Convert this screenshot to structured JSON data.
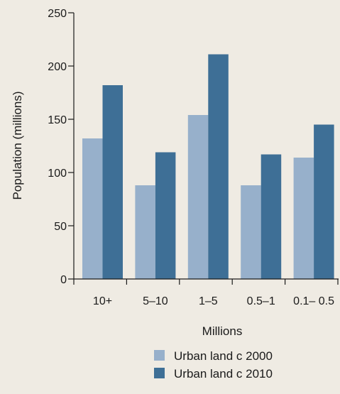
{
  "chart_data": {
    "type": "bar",
    "categories": [
      "10+",
      "5–10",
      "1–5",
      "0.5–1",
      "0.1– 0.5"
    ],
    "series": [
      {
        "name": "Urban land c 2000",
        "values": [
          132,
          88,
          154,
          88,
          114
        ],
        "color": "#97b0cb"
      },
      {
        "name": "Urban land c 2010",
        "values": [
          182,
          119,
          211,
          117,
          145
        ],
        "color": "#3e6f96"
      }
    ],
    "xlabel": "Millions",
    "ylabel": "Population (millions)",
    "ylim": [
      0,
      250
    ],
    "yticks": [
      0,
      50,
      100,
      150,
      200,
      250
    ],
    "grid": false,
    "legend_position": "bottom-right"
  }
}
